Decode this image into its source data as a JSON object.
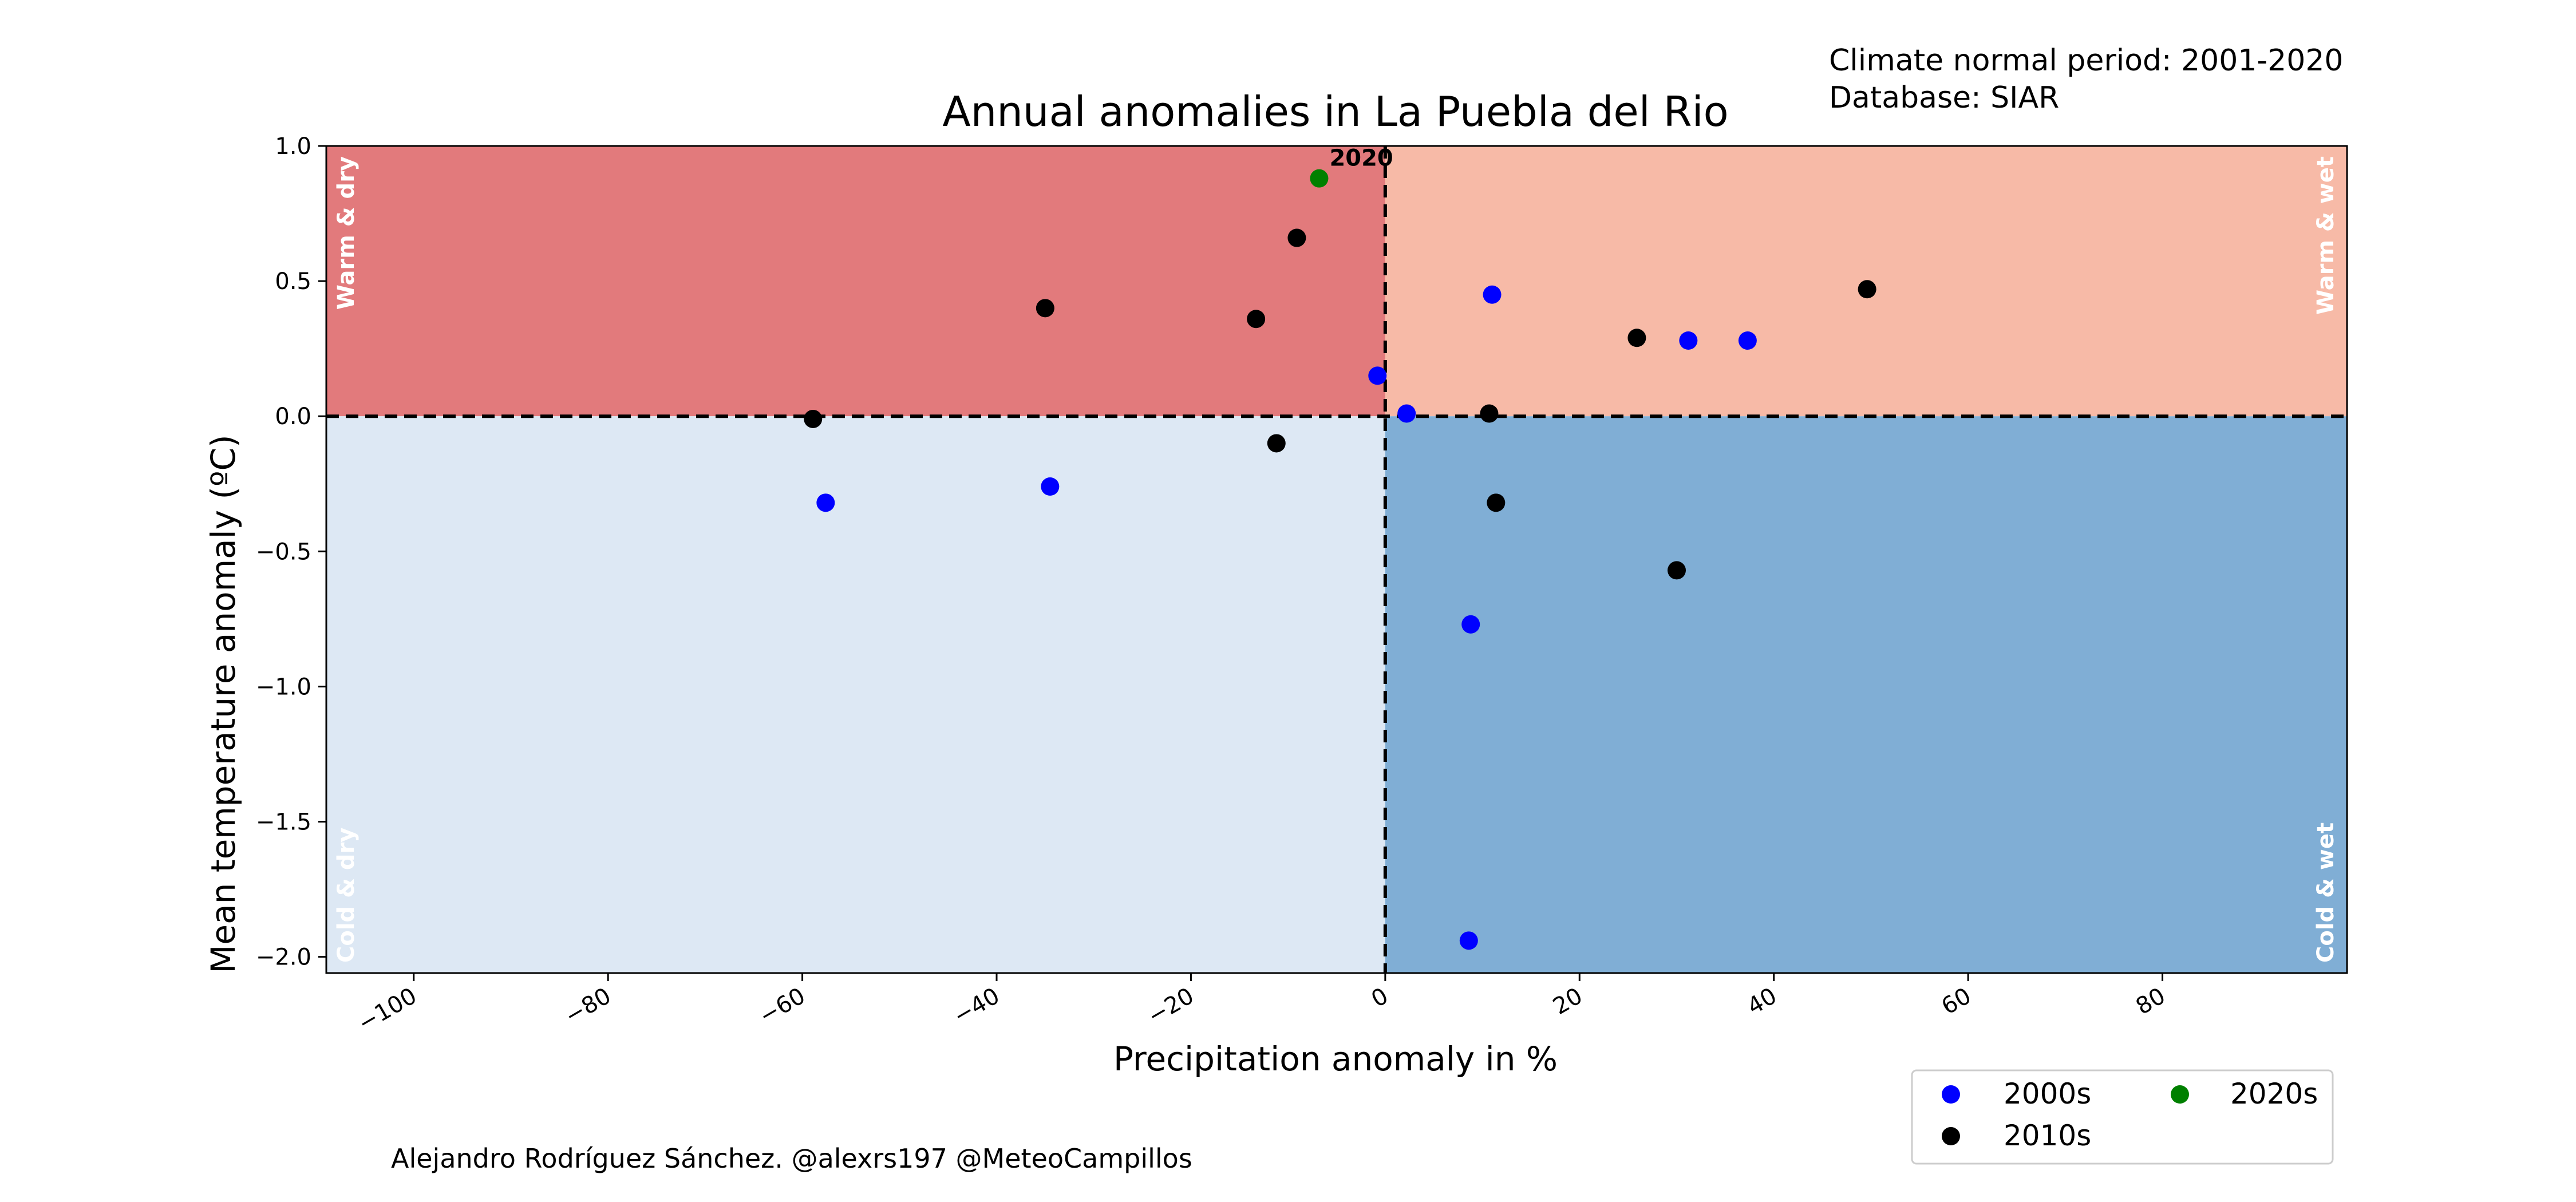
{
  "header": {
    "title": "Annual anomalies in La Puebla del Rio",
    "info_line1": "Climate normal period: 2001-2020",
    "info_line2": "Database: SIAR"
  },
  "credit": "Alejandro Rodríguez Sánchez. @alexrs197 @MeteoCampillos",
  "quadrants": {
    "warm_dry": "Warm & dry",
    "warm_wet": "Warm & wet",
    "cold_dry": "Cold & dry",
    "cold_wet": "Cold & wet"
  },
  "colors": {
    "warm_dry": "#e27a7c",
    "warm_wet": "#f7baa7",
    "cold_dry": "#dde8f4",
    "cold_wet": "#80aed5",
    "2000s": "#0000ff",
    "2010s": "#000000",
    "2020s": "#008000"
  },
  "chart_data": {
    "type": "scatter",
    "title": "Annual anomalies in La Puebla del Rio",
    "xlabel": "Precipitation anomaly in %",
    "ylabel": "Mean temperature anomaly (ºC)",
    "xlim": [
      -109,
      99
    ],
    "ylim": [
      -2.06,
      1.0
    ],
    "x_ticks": [
      -100,
      -80,
      -60,
      -40,
      -20,
      0,
      20,
      40,
      60,
      80
    ],
    "x_tick_labels": [
      "−100",
      "−80",
      "−60",
      "−40",
      "−20",
      "0",
      "20",
      "40",
      "60",
      "80"
    ],
    "y_ticks": [
      1.0,
      0.5,
      0.0,
      -0.5,
      -1.0,
      -1.5,
      -2.0
    ],
    "y_tick_labels": [
      "1.0",
      "0.5",
      "0.0",
      "−0.5",
      "−1.0",
      "−1.5",
      "−2.0"
    ],
    "reference_lines": {
      "x": 0,
      "y": 0
    },
    "grid": false,
    "legend_position": "bottom-right",
    "series": [
      {
        "name": "2000s",
        "color": "#0000ff",
        "points": [
          {
            "x": -57.6,
            "y": -0.32
          },
          {
            "x": -34.5,
            "y": -0.26
          },
          {
            "x": -0.8,
            "y": 0.15
          },
          {
            "x": 2.2,
            "y": 0.01
          },
          {
            "x": 8.8,
            "y": -0.77
          },
          {
            "x": 8.6,
            "y": -1.94
          },
          {
            "x": 11.0,
            "y": 0.45
          },
          {
            "x": 31.2,
            "y": 0.28
          },
          {
            "x": 37.3,
            "y": 0.28
          }
        ]
      },
      {
        "name": "2010s",
        "color": "#000000",
        "points": [
          {
            "x": -58.9,
            "y": -0.01
          },
          {
            "x": -35.0,
            "y": 0.4
          },
          {
            "x": -13.3,
            "y": 0.36
          },
          {
            "x": -11.2,
            "y": -0.1
          },
          {
            "x": -9.1,
            "y": 0.66
          },
          {
            "x": 10.7,
            "y": 0.01
          },
          {
            "x": 11.4,
            "y": -0.32
          },
          {
            "x": 25.9,
            "y": 0.29
          },
          {
            "x": 30.0,
            "y": -0.57
          },
          {
            "x": 49.6,
            "y": 0.47
          }
        ]
      },
      {
        "name": "2020s",
        "color": "#008000",
        "points": [
          {
            "x": -6.8,
            "y": 0.88,
            "label": "2020"
          }
        ]
      }
    ]
  }
}
